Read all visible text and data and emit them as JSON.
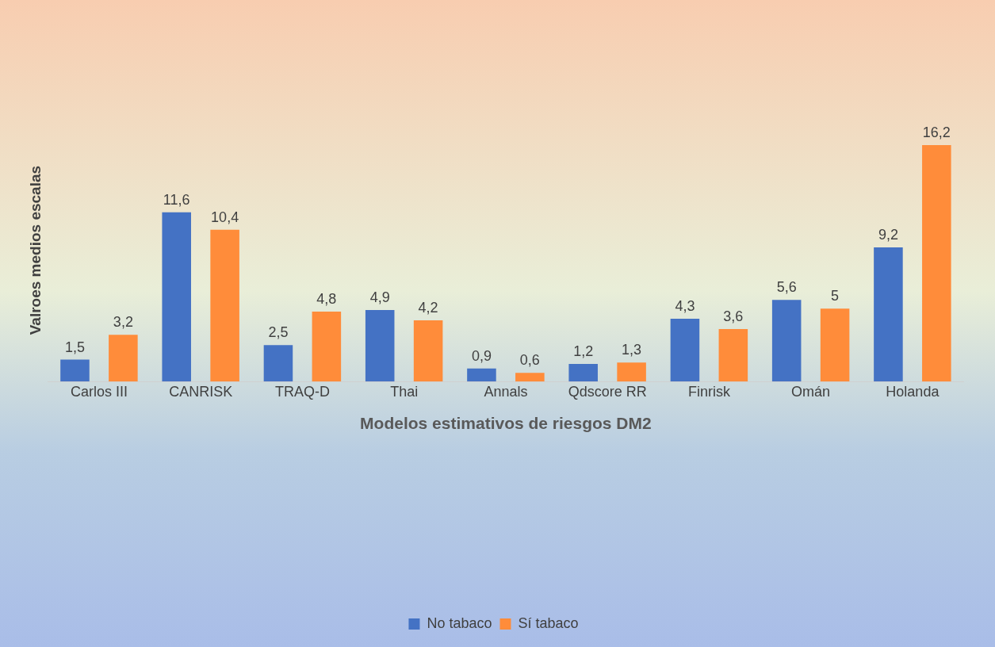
{
  "chart_data": {
    "type": "bar",
    "xlabel": "Modelos estimativos de riesgos DM2",
    "ylabel": "Valroes medios escalas",
    "categories": [
      "Carlos III",
      "CANRISK",
      "TRAQ-D",
      "Thai",
      "Annals",
      "Qdscore RR",
      "Finrisk",
      "Omán",
      "Holanda"
    ],
    "series": [
      {
        "name": "No tabaco",
        "color": "#4472c4",
        "values": [
          1.5,
          11.6,
          2.5,
          4.9,
          0.9,
          1.2,
          4.3,
          5.6,
          9.2
        ],
        "value_labels": [
          "1,5",
          "11,6",
          "2,5",
          "4,9",
          "0,9",
          "1,2",
          "4,3",
          "5,6",
          "9,2"
        ]
      },
      {
        "name": "Sí tabaco",
        "color": "#ff8c3a",
        "values": [
          3.2,
          10.4,
          4.8,
          4.2,
          0.6,
          1.3,
          3.6,
          5,
          16.2
        ],
        "value_labels": [
          "3,2",
          "10,4",
          "4,8",
          "4,2",
          "0,6",
          "1,3",
          "3,6",
          "5",
          "16,2"
        ]
      }
    ],
    "tick_labels": "x",
    "legend": "bottom",
    "grid": false
  }
}
